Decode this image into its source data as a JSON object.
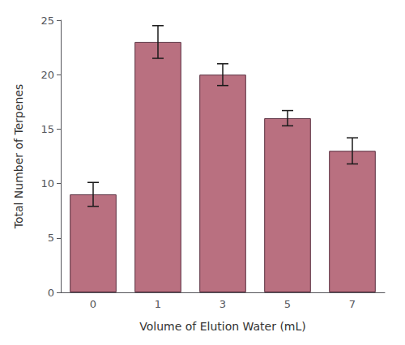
{
  "chart_data": {
    "type": "bar",
    "categories": [
      "0",
      "1",
      "3",
      "5",
      "7"
    ],
    "values": [
      9,
      23,
      20,
      16,
      13
    ],
    "errors": [
      1.1,
      1.5,
      1.0,
      0.7,
      1.2
    ],
    "color": "#b97080",
    "xlabel": "Volume of Elution Water (mL)",
    "ylabel": "Total Number of Terpenes",
    "ylim": [
      0,
      25
    ],
    "yticks": [
      0,
      5,
      10,
      15,
      20,
      25
    ],
    "grid": false
  }
}
